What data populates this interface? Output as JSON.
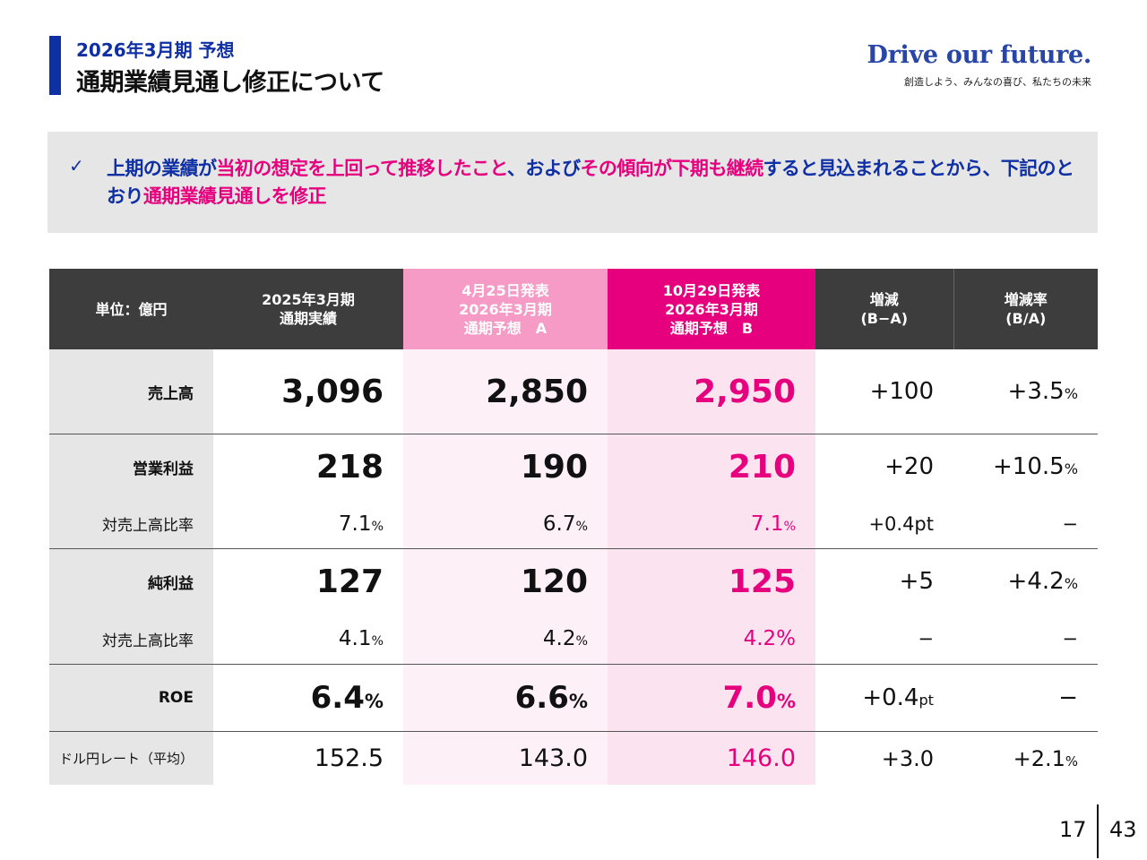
{
  "header": {
    "subtitle": "2026年3月期 予想",
    "title": "通期業績見通し修正について"
  },
  "brand": {
    "slogan": "Drive our future.",
    "sub": "創造しよう、みんなの喜び、私たちの未来"
  },
  "notice": {
    "check": "✓",
    "segments": [
      "上期の業績が",
      "当初の想定を上回って推移したこと",
      "、および",
      "その傾向が下期も継続",
      "すると見込まれることから、下記のとおり",
      "通期業績見通しを修正"
    ]
  },
  "table": {
    "unit_label": "単位：億円",
    "col_actual": [
      "2025年3月期",
      "通期実績"
    ],
    "col_a": [
      "4月25日発表",
      "2026年3月期",
      "通期予想　A"
    ],
    "col_b": [
      "10月29日発表",
      "2026年3月期",
      "通期予想　B"
    ],
    "col_diff": [
      "増減",
      "(B−A)"
    ],
    "col_rate": [
      "増減率",
      "(B/A)"
    ],
    "rows": {
      "sales": {
        "label": "売上高",
        "actual": "3,096",
        "a": "2,850",
        "b": "2,950",
        "diff": "+100",
        "rate": "+3.5"
      },
      "op": {
        "label": "営業利益",
        "actual": "218",
        "a": "190",
        "b": "210",
        "diff": "+20",
        "rate": "+10.5"
      },
      "op_ratio": {
        "label": "対売上高比率",
        "actual": "7.1",
        "a": "6.7",
        "b": "7.1",
        "diff": "+0.4pt",
        "rate": "−"
      },
      "net": {
        "label": "純利益",
        "actual": "127",
        "a": "120",
        "b": "125",
        "diff": "+5",
        "rate": "+4.2"
      },
      "net_ratio": {
        "label": "対売上高比率",
        "actual": "4.1",
        "a": "4.2",
        "b": "4.2%",
        "diff": "−",
        "rate": "−"
      },
      "roe": {
        "label": "ROE",
        "actual": "6.4",
        "a": "6.6",
        "b": "7.0",
        "diff": "+0.4",
        "diff_unit": "pt",
        "rate": "−"
      },
      "fx": {
        "label": "ドル円レート（平均）",
        "actual": "152.5",
        "a": "143.0",
        "b": "146.0",
        "diff": "+3.0",
        "rate": "+2.1"
      }
    },
    "pct": "%"
  },
  "page": {
    "current": "17",
    "total": "43"
  },
  "colors": {
    "navy": "#0f2fa4",
    "magenta": "#e6007e",
    "pink": "#f69ac6",
    "dark": "#3d3d3d"
  }
}
